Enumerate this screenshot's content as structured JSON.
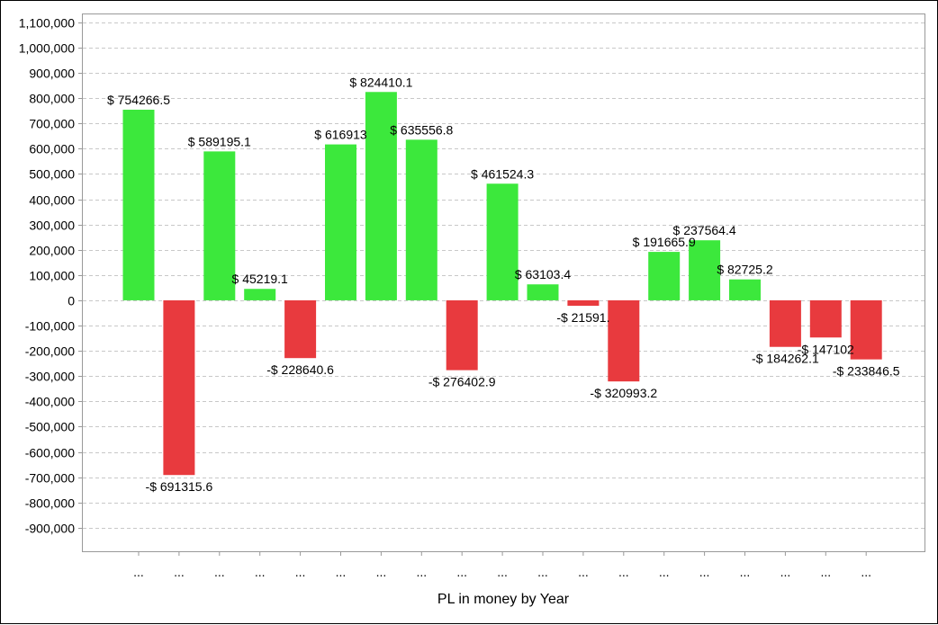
{
  "chart_data": {
    "type": "bar",
    "title": "",
    "xlabel": "PL in money by Year",
    "ylabel": "",
    "ylim": [
      -993000,
      1135000
    ],
    "yticks": [
      1100000,
      1000000,
      900000,
      800000,
      700000,
      600000,
      500000,
      400000,
      300000,
      200000,
      100000,
      0,
      -100000,
      -200000,
      -300000,
      -400000,
      -500000,
      -600000,
      -700000,
      -800000,
      -900000
    ],
    "ytick_labels": [
      "1,100,000",
      "1,000,000",
      "900,000",
      "800,000",
      "700,000",
      "600,000",
      "500,000",
      "400,000",
      "300,000",
      "200,000",
      "100,000",
      "0",
      "-100,000",
      "-200,000",
      "-300,000",
      "-400,000",
      "-500,000",
      "-600,000",
      "-700,000",
      "-800,000",
      "-900,000"
    ],
    "grid": true,
    "categories": [
      "...",
      "...",
      "...",
      "...",
      "...",
      "...",
      "...",
      "...",
      "...",
      "...",
      "...",
      "...",
      "...",
      "...",
      "...",
      "...",
      "...",
      "...",
      "..."
    ],
    "values": [
      754266.5,
      -691315.6,
      589195.1,
      45219.1,
      -228640.6,
      616913,
      824410.1,
      635556.8,
      -276402.9,
      461524.3,
      63103.4,
      -21591,
      -320993.2,
      191665.9,
      237564.4,
      82725.2,
      -184262.1,
      -147102,
      -233846.5
    ],
    "data_labels": [
      "$ 754266.5",
      "-$ 691315.6",
      "$ 589195.1",
      "$ 45219.1",
      "-$ 228640.6",
      "$ 616913",
      "$ 824410.1",
      "$ 635556.8",
      "-$ 276402.9",
      "$ 461524.3",
      "$ 63103.4",
      "-$ 21591.",
      "-$ 320993.2",
      "$ 191665.9",
      "$ 237564.4",
      "$ 82725.2",
      "-$ 184262.1",
      "-$ 147102",
      "-$ 233846.5"
    ],
    "colors": {
      "positive": "#3ce83c",
      "negative": "#e83a3e",
      "grid": "#c8c8c8"
    }
  }
}
